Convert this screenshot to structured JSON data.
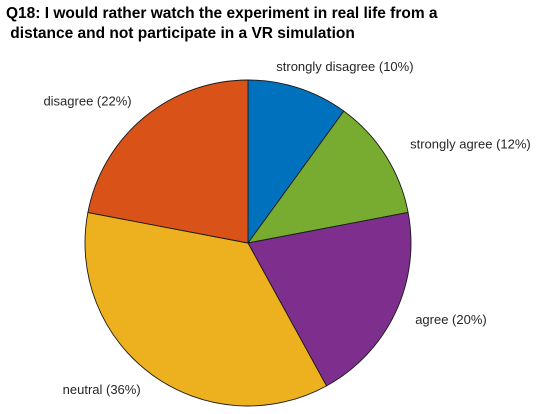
{
  "chart_data": {
    "type": "pie",
    "title_lines": [
      "Q18: I would rather watch the experiment in real life from a",
      " distance and not participate in a VR simulation"
    ],
    "slices": [
      {
        "name": "strongly disagree",
        "value": 10,
        "label": "strongly disagree (10%)",
        "color": "#0072BD"
      },
      {
        "name": "strongly agree",
        "value": 12,
        "label": "strongly agree (12%)",
        "color": "#77AC30"
      },
      {
        "name": "agree",
        "value": 20,
        "label": "agree (20%)",
        "color": "#7E2F8E"
      },
      {
        "name": "neutral",
        "value": 36,
        "label": "neutral (36%)",
        "color": "#EDB120"
      },
      {
        "name": "disagree",
        "value": 22,
        "label": "disagree (22%)",
        "color": "#D95319"
      }
    ],
    "start_angle_deg": 90,
    "direction": "clockwise",
    "legend": "none"
  }
}
